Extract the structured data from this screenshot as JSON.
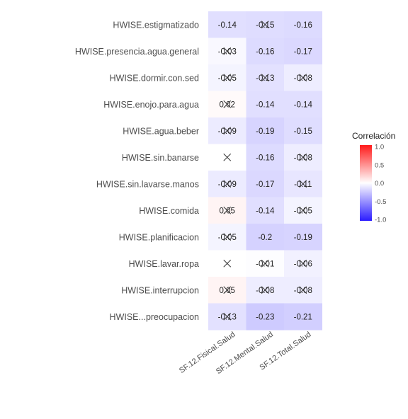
{
  "chart_data": {
    "type": "heatmap",
    "rows": [
      "HWISE.estigmatizado",
      "HWISE.presencia.agua.general",
      "HWISE.dormir.con.sed",
      "HWISE.enojo.para.agua",
      "HWISE.agua.beber",
      "HWISE.sin.banarse",
      "HWISE.sin.lavarse.manos",
      "HWISE.comida",
      "HWISE.planificacion",
      "HWISE.lavar.ropa",
      "HWISE.interrupcion",
      "HWISE...preocupacion"
    ],
    "columns": [
      "SF.12.Fisical.Salud",
      "SF.12.Mental.Salud",
      "SF.12.Total.Salud"
    ],
    "values": [
      [
        -0.14,
        -0.15,
        -0.16
      ],
      [
        -0.03,
        -0.16,
        -0.17
      ],
      [
        -0.05,
        -0.13,
        -0.08
      ],
      [
        0.02,
        -0.14,
        -0.14
      ],
      [
        -0.09,
        -0.19,
        -0.15
      ],
      [
        null,
        -0.16,
        -0.08
      ],
      [
        -0.09,
        -0.17,
        -0.11
      ],
      [
        0.05,
        -0.14,
        -0.05
      ],
      [
        -0.05,
        -0.2,
        -0.19
      ],
      [
        null,
        -0.01,
        -0.06
      ],
      [
        0.05,
        -0.08,
        -0.08
      ],
      [
        -0.13,
        -0.23,
        -0.21
      ]
    ],
    "labels": [
      [
        "-0.14",
        "-0.15",
        "-0.16"
      ],
      [
        "-0.03",
        "-0.16",
        "-0.17"
      ],
      [
        "-0.05",
        "-0.13",
        "-0.08"
      ],
      [
        "0.02",
        "-0.14",
        "-0.14"
      ],
      [
        "-0.09",
        "-0.19",
        "-0.15"
      ],
      [
        "",
        "-0.16",
        "-0.08"
      ],
      [
        "-0.09",
        "-0.17",
        "-0.11"
      ],
      [
        "0.05",
        "-0.14",
        "-0.05"
      ],
      [
        "-0.05",
        "-0.2",
        "-0.19"
      ],
      [
        "",
        "-0.01",
        "-0.06"
      ],
      [
        "0.05",
        "-0.08",
        "-0.08"
      ],
      [
        "-0.13",
        "-0.23",
        "-0.21"
      ]
    ],
    "crossed_out": [
      [
        false,
        true,
        false
      ],
      [
        true,
        false,
        false
      ],
      [
        true,
        true,
        true
      ],
      [
        true,
        false,
        false
      ],
      [
        true,
        false,
        false
      ],
      [
        true,
        false,
        true
      ],
      [
        true,
        false,
        true
      ],
      [
        true,
        false,
        true
      ],
      [
        true,
        false,
        false
      ],
      [
        true,
        true,
        true
      ],
      [
        true,
        true,
        true
      ],
      [
        true,
        false,
        false
      ]
    ],
    "legend": {
      "title": "Correlación",
      "ticks": [
        "1.0",
        "0.5",
        "0.0",
        "-0.5",
        "-1.0"
      ],
      "range": [
        -1,
        1
      ],
      "colors": {
        "low": "#2b1cff",
        "mid": "#ffffff",
        "high": "#ff1a1a"
      },
      "placement": "right"
    }
  }
}
